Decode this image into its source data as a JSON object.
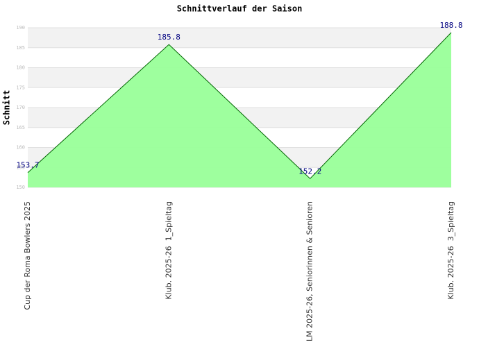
{
  "chart_data": {
    "type": "area",
    "title": "Schnittverlauf der Saison",
    "y_label": "Schnitt",
    "categories": [
      "Cup der Roma Bowlers 2025",
      "Klub. 2025-26  1_Spieltag",
      "LM 2025-26, Seniorinnen & Senioren",
      "Klub. 2025-26  3_Spieltag"
    ],
    "values": [
      153.7,
      185.8,
      152.2,
      188.8
    ],
    "color": "#006400",
    "fill": "#99ff99",
    "ylim": [
      150,
      190
    ],
    "yticks": [
      150,
      155,
      160,
      165,
      170,
      175,
      180,
      185,
      190
    ],
    "grid": true
  }
}
